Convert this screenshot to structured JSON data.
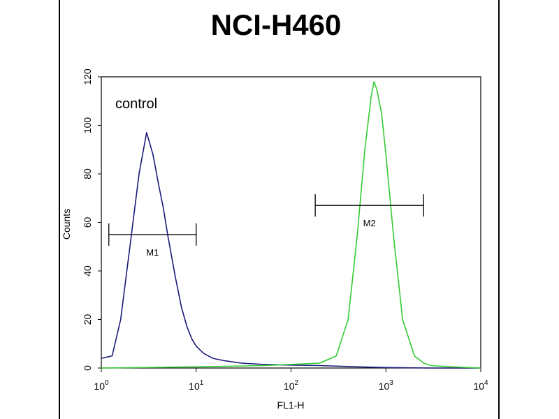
{
  "chart_data": {
    "type": "line",
    "title": "NCI-H460",
    "xlabel": "FL1-H",
    "ylabel": "Counts",
    "x_scale": "log",
    "xlim": [
      1,
      10000
    ],
    "ylim": [
      0,
      120
    ],
    "x_ticks": [
      {
        "value": 1,
        "base": "10",
        "exp": "0"
      },
      {
        "value": 10,
        "base": "10",
        "exp": "1"
      },
      {
        "value": 100,
        "base": "10",
        "exp": "2"
      },
      {
        "value": 1000,
        "base": "10",
        "exp": "3"
      },
      {
        "value": 10000,
        "base": "10",
        "exp": "4"
      }
    ],
    "y_ticks": [
      0,
      20,
      40,
      60,
      80,
      100,
      120
    ],
    "annotation": "control",
    "grid": false,
    "series": [
      {
        "color": "#1a1a7a",
        "x": [
          1.0,
          1.3,
          1.6,
          2.0,
          2.5,
          3.0,
          3.5,
          4.0,
          4.5,
          5.0,
          6.0,
          7.0,
          8.0,
          9.0,
          10.0,
          12.0,
          15.0,
          20.0,
          30.0,
          50.0,
          100.0,
          200.0,
          500.0,
          1000.0,
          3000.0,
          10000.0
        ],
        "y": [
          4,
          5,
          20,
          50,
          80,
          97,
          88,
          76,
          66,
          55,
          38,
          25,
          17,
          12,
          9,
          6,
          4,
          3,
          2,
          1.5,
          1.2,
          1,
          0.5,
          0.2,
          0,
          0
        ]
      },
      {
        "color": "#33cc33",
        "x": [
          1.0,
          10.0,
          50.0,
          100.0,
          200.0,
          300.0,
          400.0,
          500.0,
          600.0,
          700.0,
          750.0,
          800.0,
          900.0,
          1000.0,
          1200.0,
          1500.0,
          2000.0,
          2500.0,
          3000.0,
          5000.0,
          10000.0
        ],
        "y": [
          0,
          0.5,
          1,
          1.5,
          2,
          5,
          20,
          55,
          90,
          112,
          118,
          115,
          105,
          88,
          55,
          20,
          5,
          2,
          1,
          0.5,
          0
        ]
      }
    ],
    "markers": [
      {
        "label": "M1",
        "x_start": 1.2,
        "x_end": 10,
        "y": 55
      },
      {
        "label": "M2",
        "x_start": 180,
        "x_end": 2500,
        "y": 67
      }
    ]
  }
}
